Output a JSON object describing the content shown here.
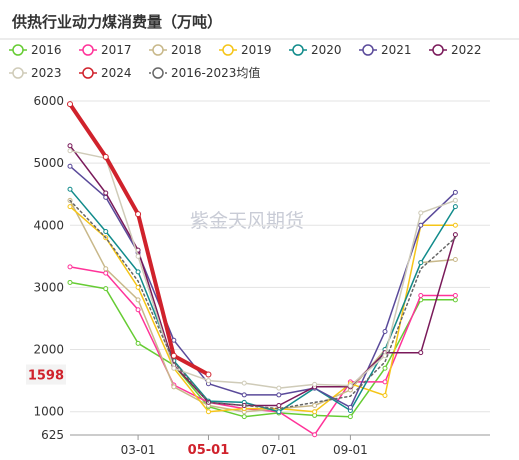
{
  "chart_data": {
    "type": "line",
    "title": "供热行业动力煤消费量（万吨）",
    "watermark": "紫金天风期货",
    "x_tick_labels": [
      "03-01",
      "05-01",
      "07-01",
      "09-01"
    ],
    "x_tick_days": [
      60,
      121,
      182,
      244
    ],
    "highlight_x_tick": "05-01",
    "x_range_days": [
      1,
      365
    ],
    "ylim": [
      625,
      6000
    ],
    "y_tick_labels": [
      "625",
      "1000",
      "2000",
      "3000",
      "4000",
      "5000",
      "6000"
    ],
    "y_tick_values": [
      625,
      1000,
      2000,
      3000,
      4000,
      5000,
      6000
    ],
    "highlight_y_label": "1598",
    "highlight_y_value": 1598,
    "x_days": [
      1,
      32,
      60,
      91,
      121,
      152,
      182,
      213,
      244,
      274,
      305,
      335,
      365
    ],
    "series": [
      {
        "name": "2016",
        "color": "#66cc33",
        "width": 1.5,
        "dashed": false,
        "values": [
          3080,
          2980,
          2100,
          1750,
          1080,
          920,
          980,
          940,
          920,
          1700,
          2800,
          2800,
          null
        ]
      },
      {
        "name": "2017",
        "color": "#ff3399",
        "width": 1.5,
        "dashed": false,
        "values": [
          3330,
          3230,
          2640,
          1430,
          1150,
          1050,
          1000,
          630,
          1480,
          1480,
          2870,
          2870,
          null
        ]
      },
      {
        "name": "2018",
        "color": "#c8b88a",
        "width": 1.5,
        "dashed": false,
        "values": [
          4400,
          3300,
          2800,
          1400,
          1100,
          1000,
          1050,
          1100,
          1350,
          2000,
          3400,
          3450,
          null
        ]
      },
      {
        "name": "2019",
        "color": "#f5c518",
        "width": 1.5,
        "dashed": false,
        "values": [
          4300,
          3800,
          3000,
          1700,
          1000,
          1050,
          1050,
          1000,
          1450,
          1260,
          4000,
          4000,
          null
        ]
      },
      {
        "name": "2020",
        "color": "#118b8b",
        "width": 1.5,
        "dashed": false,
        "values": [
          4580,
          3900,
          3250,
          1820,
          1170,
          1150,
          1000,
          1380,
          1020,
          2000,
          3400,
          4300,
          null
        ]
      },
      {
        "name": "2021",
        "color": "#5a4a9a",
        "width": 1.5,
        "dashed": false,
        "values": [
          4950,
          4450,
          3560,
          2150,
          1450,
          1270,
          1270,
          1380,
          1070,
          2290,
          4000,
          4530,
          null
        ]
      },
      {
        "name": "2022",
        "color": "#7a1a5a",
        "width": 1.5,
        "dashed": false,
        "values": [
          5280,
          4520,
          3600,
          1750,
          1150,
          1100,
          1100,
          1400,
          1400,
          1950,
          1950,
          3850,
          null
        ]
      },
      {
        "name": "2023",
        "color": "#cfcbb8",
        "width": 1.5,
        "dashed": false,
        "values": [
          5200,
          5080,
          3500,
          1700,
          1500,
          1460,
          1380,
          1440,
          1420,
          1900,
          4200,
          4400,
          null
        ]
      },
      {
        "name": "2024",
        "color": "#d0222c",
        "width": 4,
        "dashed": false,
        "values": [
          5950,
          5100,
          4180,
          1900,
          1598,
          null,
          null,
          null,
          null,
          null,
          null,
          null,
          null
        ]
      },
      {
        "name": "2016-2023均值",
        "color": "#666666",
        "width": 1.5,
        "dashed": true,
        "values": [
          4400,
          3800,
          3100,
          1800,
          1150,
          1100,
          1050,
          1150,
          1250,
          1800,
          3300,
          3800,
          null
        ]
      }
    ],
    "legend_placement": "top",
    "grid": "horizontal"
  }
}
